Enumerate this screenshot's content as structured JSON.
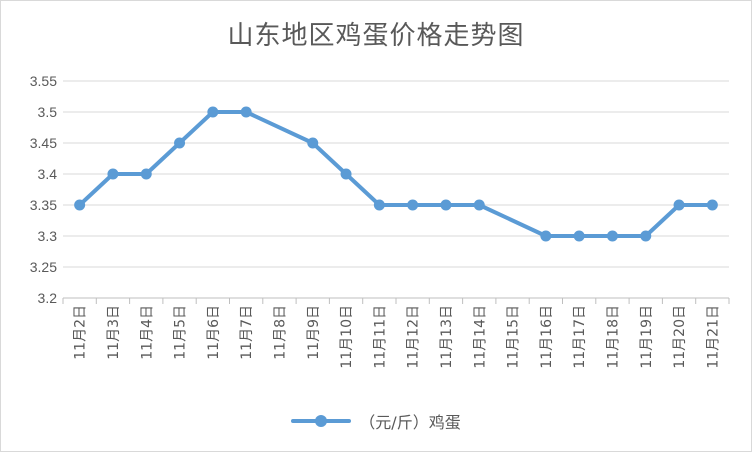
{
  "chart_data": {
    "type": "line",
    "title": "山东地区鸡蛋价格走势图",
    "categories": [
      "11月2日",
      "11月3日",
      "11月4日",
      "11月5日",
      "11月6日",
      "11月7日",
      "11月8日",
      "11月9日",
      "11月10日",
      "11月11日",
      "11月12日",
      "11月13日",
      "11月14日",
      "11月15日",
      "11月16日",
      "11月17日",
      "11月18日",
      "11月19日",
      "11月20日",
      "11月21日"
    ],
    "series": [
      {
        "name": "（元/斤）鸡蛋",
        "color": "#5b9bd5",
        "values": [
          3.35,
          3.4,
          3.4,
          3.45,
          3.5,
          3.5,
          null,
          3.45,
          3.4,
          3.35,
          3.35,
          3.35,
          3.35,
          null,
          3.3,
          3.3,
          3.3,
          3.3,
          3.35,
          3.35
        ]
      }
    ],
    "ylim": [
      3.2,
      3.55
    ],
    "yticks": [
      "3.2",
      "3.25",
      "3.3",
      "3.35",
      "3.4",
      "3.45",
      "3.5",
      "3.55"
    ],
    "grid": true,
    "legend": "bottom"
  }
}
